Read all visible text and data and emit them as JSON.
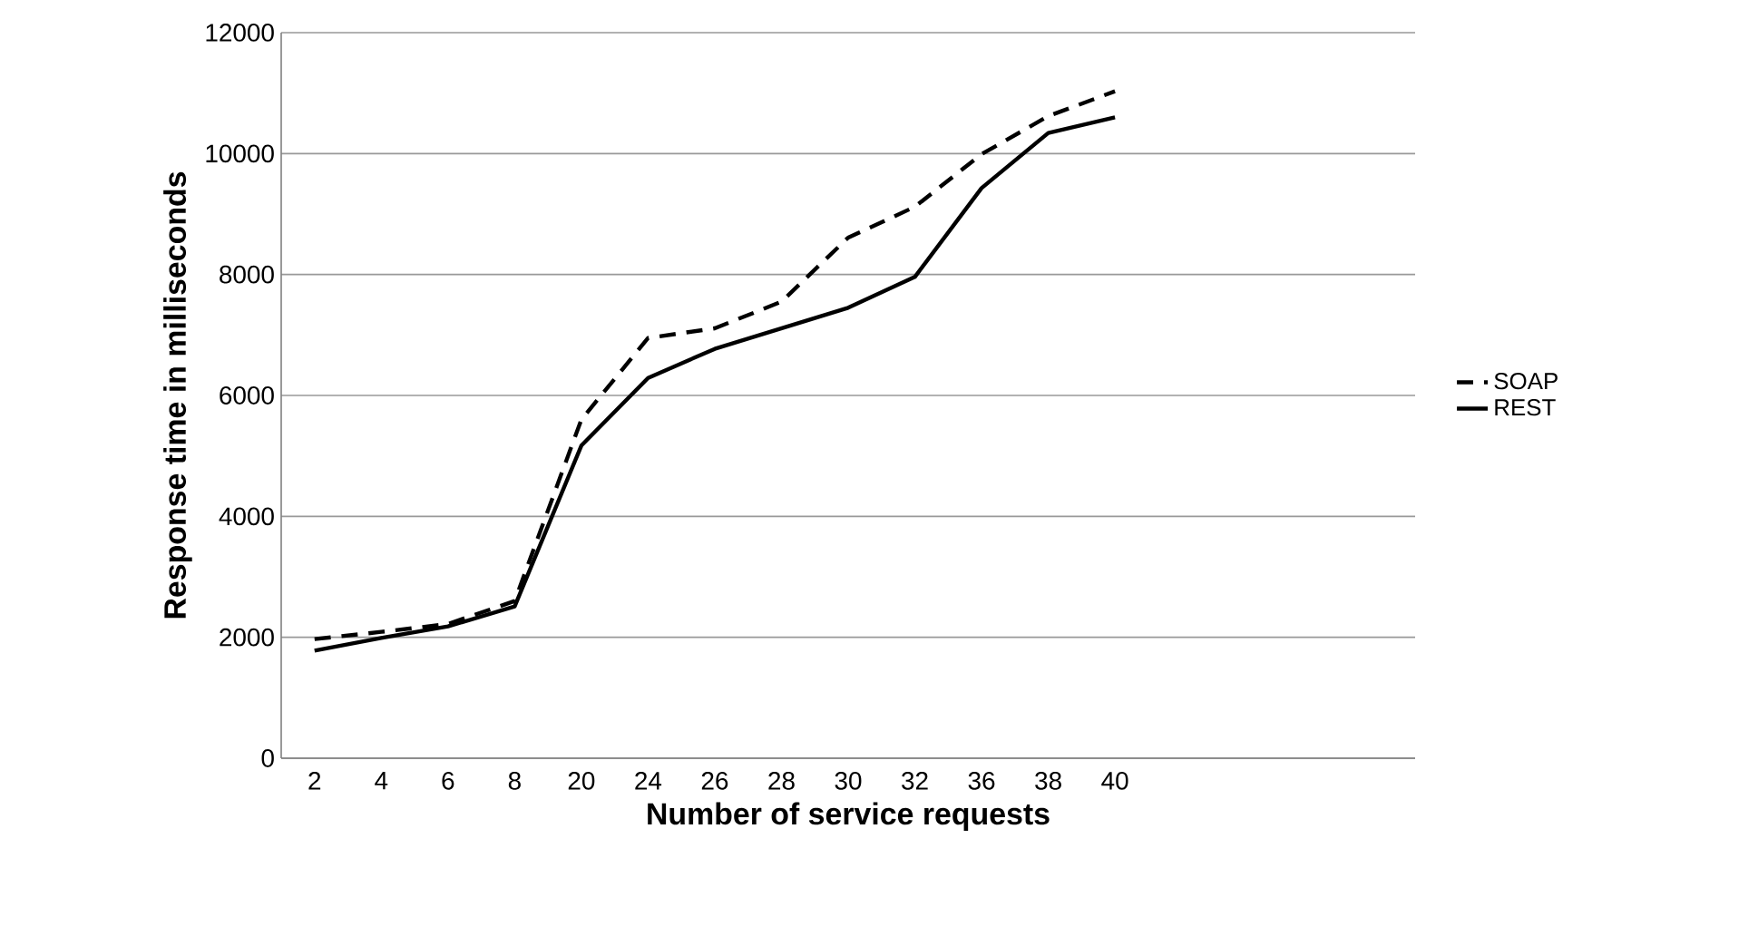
{
  "chart_data": {
    "type": "line",
    "xlabel": "Number of service requests",
    "ylabel": "Response time in milliseconds",
    "categories": [
      "2",
      "4",
      "6",
      "8",
      "20",
      "24",
      "26",
      "28",
      "30",
      "32",
      "36",
      "38",
      "40",
      null,
      null,
      null,
      null
    ],
    "series": [
      {
        "name": "SOAP",
        "color": "#000000",
        "line_style": "dashed",
        "values": [
          1970,
          2090,
          2220,
          2600,
          5600,
          6950,
          7110,
          7550,
          8610,
          9120,
          9990,
          10620,
          11030,
          null,
          null,
          null,
          null
        ]
      },
      {
        "name": "REST",
        "color": "#000000",
        "line_style": "solid",
        "values": [
          1780,
          1990,
          2180,
          2510,
          5170,
          6290,
          6770,
          7110,
          7450,
          7960,
          9430,
          10340,
          10600,
          null,
          null,
          null,
          null
        ]
      }
    ],
    "ylim": [
      0,
      12000
    ],
    "yticks": [
      0,
      2000,
      4000,
      6000,
      8000,
      10000,
      12000
    ],
    "grid": "y",
    "legend": "right",
    "marker": "none"
  }
}
